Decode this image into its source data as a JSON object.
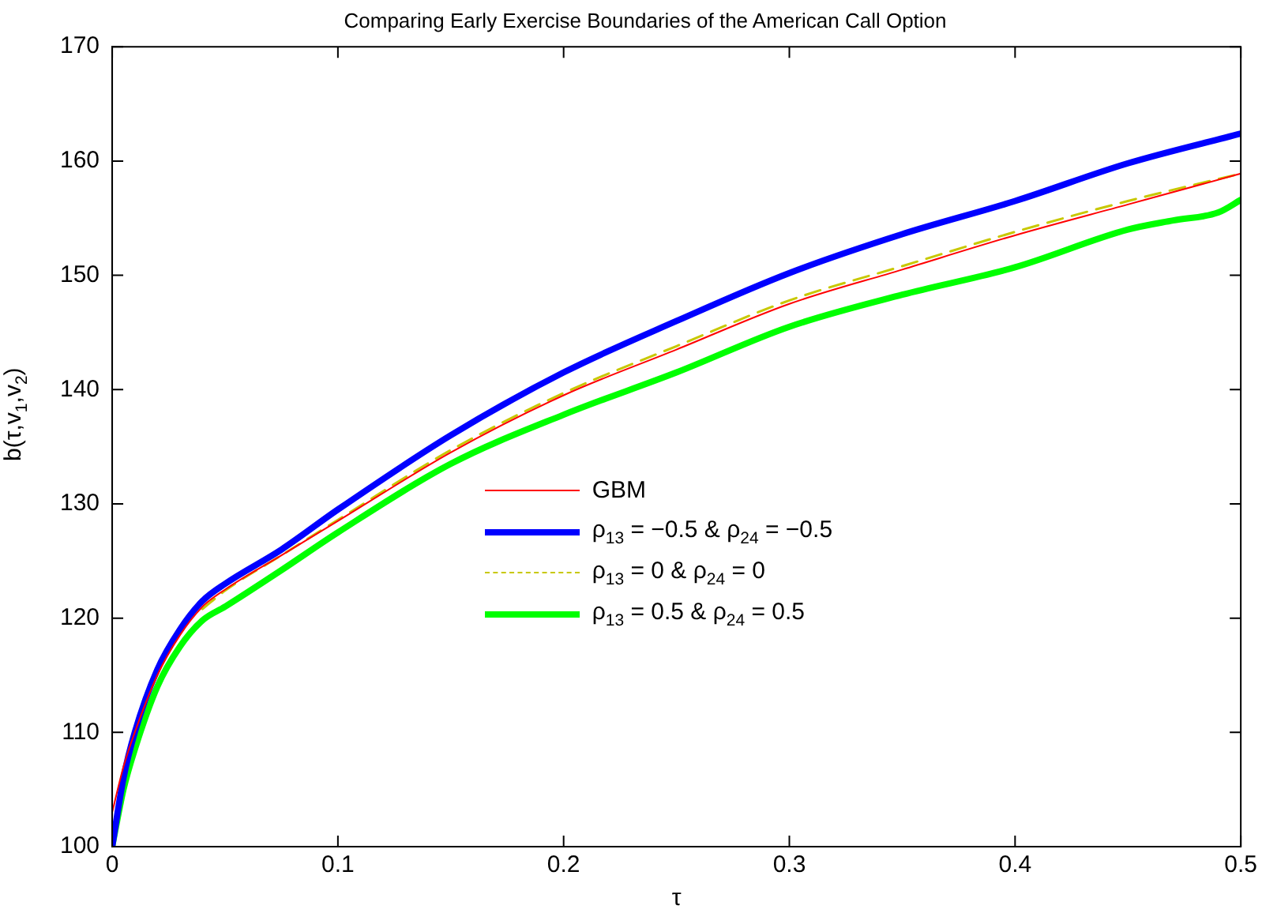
{
  "chart_data": {
    "type": "line",
    "title": "Comparing Early Exercise Boundaries of the American Call Option",
    "xlabel": "τ",
    "ylabel": "b(τ,v$_{1}$,v$_{2}$)",
    "xlim": [
      0,
      0.5
    ],
    "xticks": [
      0,
      0.1,
      0.2,
      0.3,
      0.4,
      0.5
    ],
    "ylim": [
      100,
      170
    ],
    "yticks": [
      100,
      110,
      120,
      130,
      140,
      150,
      160,
      170
    ],
    "grid": false,
    "legend": "center",
    "marker": "none",
    "series": [
      {
        "name": "GBM",
        "color": "#ff0000",
        "line_style": "solid",
        "x": [
          0,
          0.005,
          0.01,
          0.02,
          0.03,
          0.04,
          0.05,
          0.075,
          0.1,
          0.15,
          0.2,
          0.25,
          0.3,
          0.35,
          0.4,
          0.45,
          0.5
        ],
        "values": [
          103,
          107,
          110,
          115,
          118.5,
          121,
          122.5,
          125.5,
          128.5,
          134.5,
          139.5,
          143.5,
          147.5,
          150.5,
          153.5,
          156.2,
          158.9
        ]
      },
      {
        "name": "ρ$_{13}$ = −0.5 & ρ$_{24}$ = −0.5",
        "color": "#0000ff",
        "line_style": "solid",
        "x": [
          0,
          0.005,
          0.01,
          0.02,
          0.03,
          0.04,
          0.05,
          0.075,
          0.1,
          0.15,
          0.2,
          0.25,
          0.3,
          0.35,
          0.4,
          0.45,
          0.5
        ],
        "values": [
          100,
          106,
          110,
          115.5,
          119,
          121.5,
          123,
          126,
          129.5,
          136,
          141.5,
          146,
          150.2,
          153.6,
          156.5,
          159.8,
          162.4
        ]
      },
      {
        "name": "ρ$_{13}$ = 0 & ρ$_{24}$ = 0",
        "color": "#c8c800",
        "line_style": "dashed",
        "x": [
          0.04,
          0.05,
          0.075,
          0.1,
          0.15,
          0.2,
          0.25,
          0.3,
          0.35,
          0.4,
          0.45,
          0.5
        ],
        "values": [
          120.8,
          122.4,
          125.5,
          128.6,
          134.7,
          139.7,
          143.8,
          147.8,
          150.8,
          153.8,
          156.5,
          158.9
        ]
      },
      {
        "name": "ρ$_{13}$ = 0.5 & ρ$_{24}$ = 0.5",
        "color": "#00ff00",
        "line_style": "solid",
        "x": [
          0,
          0.005,
          0.01,
          0.02,
          0.03,
          0.04,
          0.05,
          0.075,
          0.1,
          0.15,
          0.2,
          0.25,
          0.3,
          0.35,
          0.4,
          0.45,
          0.47,
          0.49,
          0.5
        ],
        "values": [
          100,
          105,
          108.5,
          114,
          117.5,
          119.8,
          121,
          124.2,
          127.5,
          133.5,
          137.8,
          141.5,
          145.5,
          148.3,
          150.7,
          154,
          154.8,
          155.5,
          156.6
        ]
      }
    ]
  }
}
